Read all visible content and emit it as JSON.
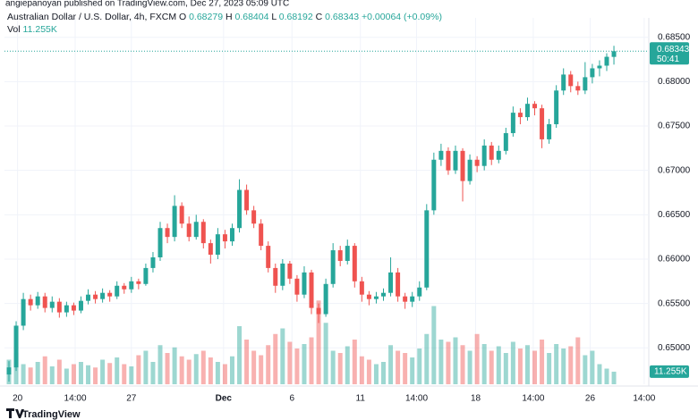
{
  "chart_data": {
    "type": "candlestick",
    "publisher_line": "angiepanoyan published on TradingView.com, Dec 27, 2023 05:09 UTC",
    "title": "Australian Dollar / U.S. Dollar, 4h, FXCM",
    "ohlc_labels": [
      "O",
      "H",
      "L",
      "C"
    ],
    "change": "+0.00064 (+0.09%)",
    "countdown": "50:41",
    "brand": "TradingView",
    "up_color": "#26a69a",
    "down_color": "#ef5350",
    "grid": true,
    "ylim": [
      0.6459,
      0.6892
    ],
    "yticks": [
      {
        "value": 0.65,
        "label": "0.65000"
      },
      {
        "value": 0.655,
        "label": "0.65500"
      },
      {
        "value": 0.66,
        "label": "0.66000"
      },
      {
        "value": 0.665,
        "label": "0.66500"
      },
      {
        "value": 0.67,
        "label": "0.67000"
      },
      {
        "value": 0.675,
        "label": "0.67500"
      },
      {
        "value": 0.68,
        "label": "0.68000"
      },
      {
        "value": 0.685,
        "label": "0.68500"
      }
    ],
    "xlim": [
      -0.62,
      88.84
    ],
    "xticks": [
      {
        "value": 1.2,
        "label": "20"
      },
      {
        "value": 9.2,
        "label": "14:00"
      },
      {
        "value": 17,
        "label": "27"
      },
      {
        "value": 29.8,
        "label": "Dec"
      },
      {
        "value": 39.3,
        "label": "6"
      },
      {
        "value": 48.8,
        "label": "11"
      },
      {
        "value": 56.6,
        "label": "14:00"
      },
      {
        "value": 64.8,
        "label": "18"
      },
      {
        "value": 72.8,
        "label": "14:00"
      },
      {
        "value": 80.7,
        "label": "26"
      },
      {
        "value": 88.2,
        "label": "14:00"
      }
    ],
    "ohlc": [
      [
        0.647,
        0.6485,
        0.6462,
        0.6478
      ],
      [
        0.6478,
        0.653,
        0.6474,
        0.6525
      ],
      [
        0.6525,
        0.6562,
        0.652,
        0.6555
      ],
      [
        0.6555,
        0.656,
        0.6542,
        0.6548
      ],
      [
        0.6548,
        0.6563,
        0.6544,
        0.6558
      ],
      [
        0.6558,
        0.6562,
        0.654,
        0.6545
      ],
      [
        0.6545,
        0.6558,
        0.654,
        0.6552
      ],
      [
        0.6552,
        0.6556,
        0.6534,
        0.654
      ],
      [
        0.654,
        0.6552,
        0.6535,
        0.6548
      ],
      [
        0.6548,
        0.6551,
        0.6537,
        0.6542
      ],
      [
        0.6542,
        0.6558,
        0.6539,
        0.6553
      ],
      [
        0.6553,
        0.6566,
        0.6549,
        0.656
      ],
      [
        0.656,
        0.6564,
        0.655,
        0.6555
      ],
      [
        0.6555,
        0.6567,
        0.6551,
        0.6562
      ],
      [
        0.6562,
        0.6565,
        0.6552,
        0.6558
      ],
      [
        0.6558,
        0.6575,
        0.6555,
        0.657
      ],
      [
        0.657,
        0.6573,
        0.6561,
        0.6566
      ],
      [
        0.6566,
        0.658,
        0.6562,
        0.6575
      ],
      [
        0.6575,
        0.6578,
        0.6566,
        0.6572
      ],
      [
        0.6572,
        0.6595,
        0.657,
        0.659
      ],
      [
        0.659,
        0.6608,
        0.6585,
        0.6602
      ],
      [
        0.6602,
        0.6642,
        0.6598,
        0.6635
      ],
      [
        0.6635,
        0.664,
        0.6618,
        0.6625
      ],
      [
        0.6625,
        0.6672,
        0.662,
        0.666
      ],
      [
        0.666,
        0.6664,
        0.6635,
        0.664
      ],
      [
        0.664,
        0.6648,
        0.662,
        0.6625
      ],
      [
        0.6625,
        0.665,
        0.6622,
        0.6642
      ],
      [
        0.6642,
        0.6645,
        0.6612,
        0.6618
      ],
      [
        0.6618,
        0.6622,
        0.6595,
        0.6605
      ],
      [
        0.6605,
        0.6635,
        0.66,
        0.6628
      ],
      [
        0.6628,
        0.6633,
        0.6612,
        0.662
      ],
      [
        0.662,
        0.664,
        0.6615,
        0.6635
      ],
      [
        0.6635,
        0.669,
        0.663,
        0.6678
      ],
      [
        0.6678,
        0.6684,
        0.665,
        0.6655
      ],
      [
        0.6655,
        0.666,
        0.6635,
        0.664
      ],
      [
        0.664,
        0.6645,
        0.661,
        0.6615
      ],
      [
        0.6615,
        0.662,
        0.6585,
        0.659
      ],
      [
        0.659,
        0.6595,
        0.6562,
        0.657
      ],
      [
        0.657,
        0.66,
        0.6565,
        0.6595
      ],
      [
        0.6595,
        0.6598,
        0.6572,
        0.6578
      ],
      [
        0.6578,
        0.6582,
        0.6552,
        0.656
      ],
      [
        0.656,
        0.6592,
        0.6556,
        0.6585
      ],
      [
        0.6585,
        0.6588,
        0.6538,
        0.6545
      ],
      [
        0.6545,
        0.655,
        0.6528,
        0.6538
      ],
      [
        0.6538,
        0.6578,
        0.6535,
        0.6572
      ],
      [
        0.6572,
        0.6618,
        0.6568,
        0.661
      ],
      [
        0.661,
        0.6615,
        0.6592,
        0.6598
      ],
      [
        0.6598,
        0.6622,
        0.6594,
        0.6615
      ],
      [
        0.6615,
        0.6618,
        0.6568,
        0.6575
      ],
      [
        0.6575,
        0.658,
        0.6552,
        0.656
      ],
      [
        0.656,
        0.6564,
        0.6548,
        0.6555
      ],
      [
        0.6555,
        0.6563,
        0.655,
        0.6558
      ],
      [
        0.6558,
        0.6567,
        0.6553,
        0.6562
      ],
      [
        0.6562,
        0.6602,
        0.6558,
        0.6585
      ],
      [
        0.6585,
        0.659,
        0.6552,
        0.6558
      ],
      [
        0.6558,
        0.6562,
        0.6544,
        0.6552
      ],
      [
        0.6552,
        0.6563,
        0.6546,
        0.6558
      ],
      [
        0.6558,
        0.6575,
        0.6553,
        0.6568
      ],
      [
        0.6568,
        0.6662,
        0.6565,
        0.6655
      ],
      [
        0.6655,
        0.672,
        0.665,
        0.6712
      ],
      [
        0.6712,
        0.673,
        0.6705,
        0.6722
      ],
      [
        0.6722,
        0.6726,
        0.6695,
        0.67
      ],
      [
        0.67,
        0.6728,
        0.6696,
        0.6722
      ],
      [
        0.6722,
        0.6725,
        0.6665,
        0.6688
      ],
      [
        0.6688,
        0.6718,
        0.6684,
        0.6712
      ],
      [
        0.6712,
        0.6716,
        0.6698,
        0.6705
      ],
      [
        0.6705,
        0.6735,
        0.67,
        0.6728
      ],
      [
        0.6728,
        0.6732,
        0.6706,
        0.6712
      ],
      [
        0.6712,
        0.6728,
        0.6708,
        0.6722
      ],
      [
        0.6722,
        0.6748,
        0.6718,
        0.6742
      ],
      [
        0.6742,
        0.6772,
        0.6738,
        0.6765
      ],
      [
        0.6765,
        0.677,
        0.6752,
        0.676
      ],
      [
        0.676,
        0.6782,
        0.6756,
        0.6775
      ],
      [
        0.6775,
        0.6778,
        0.6762,
        0.677
      ],
      [
        0.677,
        0.6774,
        0.6725,
        0.6735
      ],
      [
        0.6735,
        0.6758,
        0.673,
        0.6752
      ],
      [
        0.6752,
        0.6796,
        0.6748,
        0.679
      ],
      [
        0.679,
        0.6815,
        0.6785,
        0.6808
      ],
      [
        0.6808,
        0.6812,
        0.6788,
        0.6795
      ],
      [
        0.6795,
        0.68,
        0.6785,
        0.679
      ],
      [
        0.679,
        0.6822,
        0.6786,
        0.6805
      ],
      [
        0.6805,
        0.682,
        0.6798,
        0.6815
      ],
      [
        0.6815,
        0.6824,
        0.6806,
        0.6818
      ],
      [
        0.6818,
        0.6832,
        0.6812,
        0.6828
      ],
      [
        0.68279,
        0.68404,
        0.68192,
        0.68343
      ]
    ],
    "volume": {
      "name": "Vol",
      "last_label": "11.255K",
      "vlim": [
        0,
        80
      ],
      "values": [
        22,
        28,
        18,
        15,
        20,
        25,
        16,
        22,
        14,
        18,
        20,
        17,
        15,
        22,
        19,
        24,
        18,
        16,
        26,
        30,
        20,
        35,
        28,
        33,
        25,
        22,
        27,
        30,
        24,
        20,
        18,
        25,
        52,
        40,
        30,
        26,
        35,
        45,
        50,
        38,
        32,
        36,
        42,
        75,
        55,
        30,
        28,
        34,
        40,
        25,
        22,
        18,
        20,
        35,
        30,
        28,
        24,
        32,
        45,
        70,
        40,
        38,
        42,
        35,
        30,
        45,
        36,
        30,
        34,
        28,
        38,
        32,
        35,
        30,
        40,
        28,
        36,
        32,
        34,
        42,
        26,
        30,
        18,
        14,
        11.255
      ]
    }
  }
}
